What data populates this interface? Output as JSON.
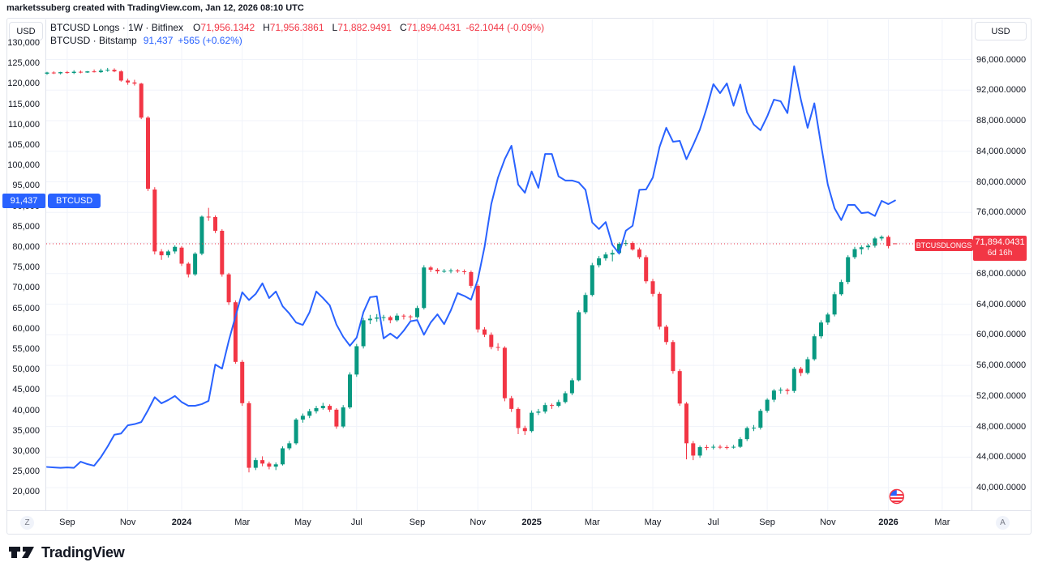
{
  "attribution": "marketssuberg created with TradingView.com, Jan 12, 2026 08:10 UTC",
  "legend": {
    "series1": {
      "title": "BTCUSD Longs · 1W · Bitfinex",
      "o_label": "O",
      "o": "71,956.1342",
      "h_label": "H",
      "h": "71,956.3861",
      "l_label": "L",
      "l": "71,882.9491",
      "c_label": "C",
      "c": "71,894.0431",
      "change": "-62.1044 (-0.09%)"
    },
    "series2": {
      "title": "BTCUSD · Bitstamp",
      "price": "91,437",
      "change": "+565 (+0.62%)"
    }
  },
  "price_scale_left": {
    "unit_button": "USD",
    "ticks": [
      "130,000",
      "125,000",
      "120,000",
      "115,000",
      "110,000",
      "105,000",
      "100,000",
      "95,000",
      "90,000",
      "85,000",
      "80,000",
      "75,000",
      "70,000",
      "65,000",
      "60,000",
      "55,000",
      "50,000",
      "45,000",
      "40,000",
      "35,000",
      "30,000",
      "25,000",
      "20,000"
    ]
  },
  "price_scale_right": {
    "unit_button": "USD",
    "ticks": [
      "96,000.0000",
      "92,000.0000",
      "88,000.0000",
      "84,000.0000",
      "80,000.0000",
      "76,000.0000",
      "72,000.0000",
      "68,000.0000",
      "64,000.0000",
      "60,000.0000",
      "56,000.0000",
      "52,000.0000",
      "48,000.0000",
      "44,000.0000",
      "40,000.0000"
    ]
  },
  "time_axis": {
    "z_button": "Z",
    "a_button": "A",
    "ticks": [
      {
        "label": "Sep",
        "week": 3,
        "year": false
      },
      {
        "label": "Nov",
        "week": 12,
        "year": false
      },
      {
        "label": "2024",
        "week": 20,
        "year": true
      },
      {
        "label": "Mar",
        "week": 29,
        "year": false
      },
      {
        "label": "May",
        "week": 38,
        "year": false
      },
      {
        "label": "Jul",
        "week": 46,
        "year": false
      },
      {
        "label": "Sep",
        "week": 55,
        "year": false
      },
      {
        "label": "Nov",
        "week": 64,
        "year": false
      },
      {
        "label": "2025",
        "week": 72,
        "year": true
      },
      {
        "label": "Mar",
        "week": 81,
        "year": false
      },
      {
        "label": "May",
        "week": 90,
        "year": false
      },
      {
        "label": "Jul",
        "week": 99,
        "year": false
      },
      {
        "label": "Sep",
        "week": 107,
        "year": false
      },
      {
        "label": "Nov",
        "week": 116,
        "year": false
      },
      {
        "label": "2026",
        "week": 125,
        "year": true
      },
      {
        "label": "Mar",
        "week": 133,
        "year": false
      }
    ]
  },
  "floating_labels": {
    "blue_price": "91,437",
    "blue_tag": "BTCUSD",
    "longs_tag": "BTCUSDLONGS",
    "longs_price": "71,894.0431",
    "longs_countdown": "6d 16h"
  },
  "footer": {
    "logo_text": "TradingView"
  },
  "marker": {
    "type": "us-flag-event-icon",
    "week": 126
  },
  "colors": {
    "up": "#089981",
    "down": "#f23645",
    "line": "#2962ff",
    "grid": "#f0f3fa",
    "axis_text": "#131722",
    "border": "#e0e3eb",
    "label_blue": "#2962ff",
    "label_red": "#f23645"
  },
  "chart_data": {
    "type": "mixed",
    "title": "BTCUSD Longs (Bitfinex, weekly candles, right axis) vs BTCUSD price (Bitstamp, blue line, left axis)",
    "left_axis": {
      "min": 20000,
      "max": 130000,
      "tick_step": 5000,
      "unit": "USD"
    },
    "right_axis": {
      "min": 40000,
      "max": 96000,
      "tick_step": 4000,
      "unit": "USD"
    },
    "grid": true,
    "priceline": {
      "value": 71894.0431,
      "axis": "right",
      "style": "dotted",
      "color": "#f23645"
    },
    "series": [
      {
        "name": "BTCUSD Longs · 1W · Bitfinex",
        "type": "candlestick",
        "axis": "right",
        "last": {
          "open": 71956.1342,
          "high": 71956.3861,
          "low": 71882.9491,
          "close": 71894.0431,
          "change": -62.1044,
          "change_pct": -0.09
        },
        "candles": [
          [
            94150,
            94400,
            94000,
            94300
          ],
          [
            94300,
            94450,
            94100,
            94200
          ],
          [
            94200,
            94400,
            94050,
            94350
          ],
          [
            94350,
            94500,
            94150,
            94250
          ],
          [
            94250,
            94600,
            94100,
            94400
          ],
          [
            94400,
            94550,
            94200,
            94300
          ],
          [
            94300,
            94500,
            94250,
            94450
          ],
          [
            94450,
            94700,
            94300,
            94350
          ],
          [
            94350,
            94800,
            94250,
            94550
          ],
          [
            94550,
            94900,
            94400,
            94650
          ],
          [
            94650,
            94850,
            94350,
            94450
          ],
          [
            94450,
            94600,
            93100,
            93250
          ],
          [
            93250,
            93500,
            92700,
            93000
          ],
          [
            93000,
            93350,
            92600,
            92850
          ],
          [
            92850,
            92950,
            88200,
            88400
          ],
          [
            88400,
            88600,
            78800,
            79100
          ],
          [
            79000,
            79300,
            70500,
            70900
          ],
          [
            70900,
            71200,
            69800,
            70400
          ],
          [
            70400,
            71100,
            70100,
            70900
          ],
          [
            70900,
            71700,
            70600,
            71500
          ],
          [
            71400,
            71600,
            69000,
            69300
          ],
          [
            69300,
            69500,
            67500,
            67900
          ],
          [
            67900,
            70800,
            67700,
            70600
          ],
          [
            70600,
            75600,
            70400,
            75450
          ],
          [
            75450,
            76600,
            74900,
            75400
          ],
          [
            75400,
            75600,
            73300,
            73600
          ],
          [
            73600,
            73800,
            67600,
            67900
          ],
          [
            67900,
            68100,
            63900,
            64250
          ],
          [
            64250,
            64500,
            56200,
            56450
          ],
          [
            56450,
            56700,
            50700,
            51050
          ],
          [
            51050,
            51300,
            42000,
            42600
          ],
          [
            42600,
            43900,
            42300,
            43600
          ],
          [
            43600,
            44100,
            42800,
            43150
          ],
          [
            43150,
            43400,
            42400,
            42750
          ],
          [
            42750,
            43300,
            42300,
            43050
          ],
          [
            43050,
            45400,
            42900,
            45150
          ],
          [
            45150,
            46100,
            44900,
            45800
          ],
          [
            45800,
            49100,
            45600,
            48900
          ],
          [
            48900,
            49700,
            48500,
            49400
          ],
          [
            49400,
            50300,
            49100,
            50000
          ],
          [
            50000,
            50700,
            49700,
            50400
          ],
          [
            50400,
            51100,
            50200,
            50700
          ],
          [
            50700,
            50900,
            49900,
            50200
          ],
          [
            50200,
            50400,
            47700,
            48000
          ],
          [
            48000,
            50800,
            47800,
            50500
          ],
          [
            50500,
            55100,
            50300,
            54800
          ],
          [
            54800,
            58800,
            54500,
            58500
          ],
          [
            58500,
            62200,
            58200,
            61900
          ],
          [
            61900,
            62600,
            61400,
            62100
          ],
          [
            62100,
            62700,
            61700,
            62250
          ],
          [
            62250,
            62600,
            61800,
            62300
          ],
          [
            62300,
            62500,
            61500,
            61900
          ],
          [
            61900,
            62800,
            61700,
            62500
          ],
          [
            62500,
            62700,
            62000,
            62400
          ],
          [
            62400,
            62600,
            61900,
            62300
          ],
          [
            62300,
            63800,
            62100,
            63500
          ],
          [
            63500,
            69100,
            63300,
            68800
          ],
          [
            68800,
            69000,
            68200,
            68500
          ],
          [
            68500,
            68700,
            68000,
            68300
          ],
          [
            68300,
            68600,
            68100,
            68350
          ],
          [
            68350,
            68650,
            68050,
            68400
          ],
          [
            68400,
            68600,
            68100,
            68300
          ],
          [
            68300,
            68550,
            67900,
            68200
          ],
          [
            68200,
            68400,
            66100,
            66400
          ],
          [
            66400,
            66600,
            60300,
            60700
          ],
          [
            60700,
            61000,
            59700,
            60000
          ],
          [
            60000,
            60300,
            58100,
            58400
          ],
          [
            58400,
            58900,
            57900,
            58300
          ],
          [
            58300,
            58500,
            51300,
            51700
          ],
          [
            51700,
            52000,
            49900,
            50300
          ],
          [
            50300,
            50500,
            47000,
            47800
          ],
          [
            47800,
            48100,
            46900,
            47400
          ],
          [
            47400,
            50100,
            47200,
            49800
          ],
          [
            49800,
            50300,
            49500,
            49950
          ],
          [
            49950,
            51100,
            49700,
            50800
          ],
          [
            50800,
            51000,
            50300,
            50700
          ],
          [
            50700,
            51500,
            50500,
            51200
          ],
          [
            51200,
            52600,
            51000,
            52350
          ],
          [
            52350,
            54300,
            52100,
            54050
          ],
          [
            54050,
            63200,
            53900,
            62950
          ],
          [
            62950,
            65500,
            62700,
            65200
          ],
          [
            65200,
            69400,
            65000,
            69100
          ],
          [
            69100,
            70300,
            68800,
            70000
          ],
          [
            70000,
            70800,
            69700,
            70500
          ],
          [
            70500,
            71100,
            69600,
            70700
          ],
          [
            70700,
            72100,
            70500,
            71900
          ],
          [
            71900,
            72400,
            71600,
            72000
          ],
          [
            72000,
            72200,
            71000,
            71150
          ],
          [
            71150,
            71400,
            69900,
            70150
          ],
          [
            70150,
            70400,
            66700,
            67000
          ],
          [
            67000,
            67300,
            65000,
            65350
          ],
          [
            65350,
            65600,
            60700,
            61050
          ],
          [
            61050,
            61300,
            58700,
            59050
          ],
          [
            59050,
            59300,
            54900,
            55250
          ],
          [
            55250,
            55500,
            50700,
            51000
          ],
          [
            51000,
            51200,
            43700,
            45800
          ],
          [
            45800,
            46100,
            43600,
            44200
          ],
          [
            44200,
            45500,
            43900,
            45300
          ],
          [
            45300,
            45600,
            44900,
            45250
          ],
          [
            45250,
            45650,
            45000,
            45350
          ],
          [
            45350,
            45600,
            45050,
            45300
          ],
          [
            45300,
            45550,
            45000,
            45250
          ],
          [
            45250,
            45600,
            45100,
            45350
          ],
          [
            45350,
            46600,
            45200,
            46350
          ],
          [
            46350,
            48000,
            46100,
            47800
          ],
          [
            47800,
            48200,
            47400,
            47850
          ],
          [
            47850,
            50300,
            47600,
            50050
          ],
          [
            50050,
            51700,
            49800,
            51500
          ],
          [
            51500,
            52900,
            51200,
            52700
          ],
          [
            52700,
            53100,
            52300,
            52800
          ],
          [
            52800,
            53000,
            52200,
            52650
          ],
          [
            52650,
            55800,
            52400,
            55550
          ],
          [
            55550,
            55800,
            54600,
            55000
          ],
          [
            55000,
            57100,
            54800,
            56800
          ],
          [
            56800,
            60100,
            56600,
            59800
          ],
          [
            59800,
            61900,
            59500,
            61600
          ],
          [
            61600,
            62900,
            61300,
            62650
          ],
          [
            62650,
            65600,
            62400,
            65300
          ],
          [
            65300,
            67200,
            65100,
            66900
          ],
          [
            66900,
            70400,
            66600,
            70150
          ],
          [
            70150,
            71500,
            69900,
            71200
          ],
          [
            71200,
            71700,
            70500,
            71450
          ],
          [
            71450,
            71900,
            71100,
            71650
          ],
          [
            71650,
            72800,
            71400,
            72600
          ],
          [
            72600,
            73000,
            72300,
            72800
          ],
          [
            72800,
            73000,
            71300,
            71600
          ],
          [
            71956.13,
            71956.39,
            71882.95,
            71894.04
          ]
        ]
      },
      {
        "name": "BTCUSD · Bitstamp",
        "type": "line",
        "axis": "left",
        "last": {
          "close": 91437,
          "change": 565,
          "change_pct": 0.62
        },
        "values": [
          26100,
          26000,
          25900,
          26000,
          25900,
          27400,
          26800,
          26400,
          28500,
          31100,
          34000,
          34300,
          36300,
          36600,
          37100,
          40000,
          43200,
          41700,
          42500,
          43500,
          42000,
          41100,
          41100,
          41500,
          42300,
          51200,
          50200,
          57000,
          63000,
          68900,
          67000,
          68500,
          71100,
          67500,
          69100,
          65500,
          63700,
          61500,
          60900,
          64000,
          69100,
          67500,
          65700,
          61000,
          58000,
          55800,
          57800,
          64000,
          67700,
          67900,
          57600,
          58800,
          57600,
          59500,
          61800,
          62100,
          58500,
          61500,
          63500,
          61100,
          64500,
          68700,
          68000,
          67100,
          72000,
          80000,
          90500,
          97000,
          101500,
          104800,
          95300,
          93300,
          98500,
          94500,
          102800,
          102800,
          97300,
          96300,
          96300,
          95800,
          94000,
          86000,
          84400,
          86100,
          80500,
          78400,
          84000,
          85200,
          94000,
          94100,
          97000,
          104500,
          109200,
          105800,
          106000,
          101500,
          105000,
          108800,
          114000,
          119900,
          117700,
          120100,
          114600,
          119800,
          113000,
          110000,
          108600,
          112000,
          116100,
          115700,
          112800,
          124300,
          116100,
          109200,
          115200,
          105000,
          95300,
          89500,
          86600,
          90300,
          90300,
          88300,
          88500,
          87600,
          91300,
          90500,
          91400
        ]
      }
    ]
  }
}
